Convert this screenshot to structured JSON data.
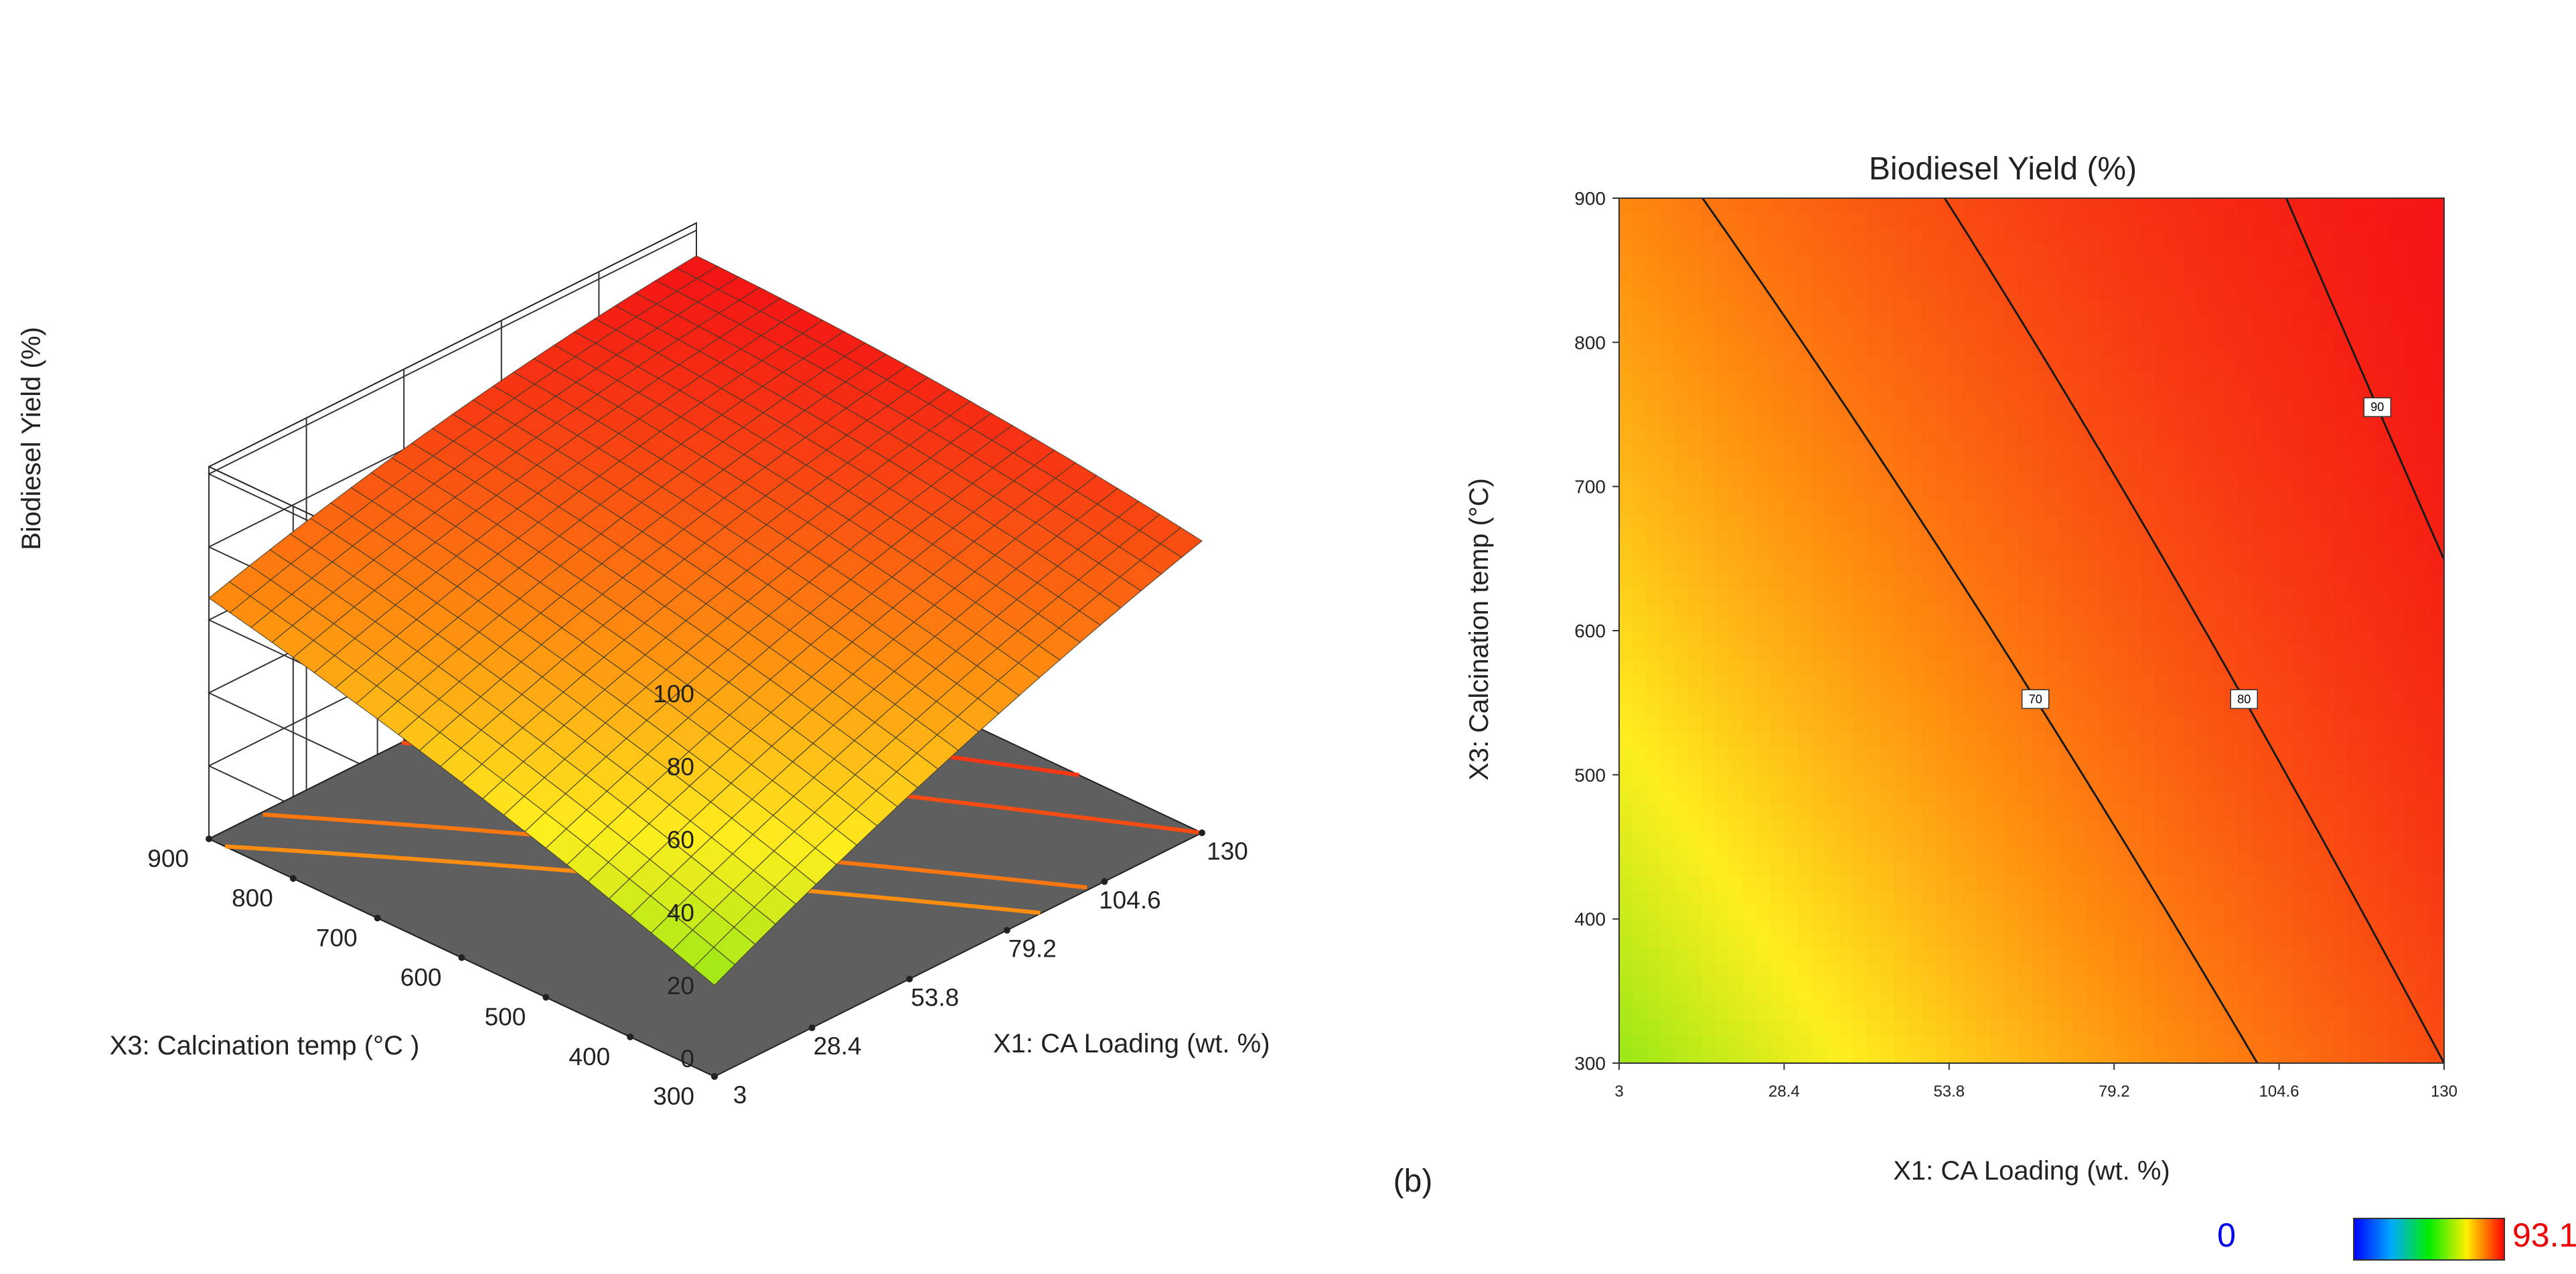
{
  "panel_label": "(b)",
  "chart_data": [
    {
      "type": "surface3d",
      "zlabel": "Biodiesel Yield (%)",
      "xlabel": "X1: CA Loading (wt. %)",
      "ylabel": "X3: Calcination temp (°C )",
      "x_ticks": [
        "3",
        "28.4",
        "53.8",
        "79.2",
        "104.6",
        "130"
      ],
      "y_ticks": [
        "300",
        "400",
        "500",
        "600",
        "700",
        "800",
        "900"
      ],
      "z_ticks": [
        "0",
        "20",
        "40",
        "60",
        "80",
        "100"
      ],
      "xlim": [
        3,
        130
      ],
      "ylim": [
        300,
        900
      ],
      "zlim": [
        0,
        100
      ],
      "corner_values": {
        "x3_y300": 25,
        "x3_y900": 66,
        "x130_y300": 80,
        "x130_y900": 93
      },
      "floor_contours": [
        65,
        70,
        80,
        85,
        90
      ]
    },
    {
      "type": "heatmap",
      "title": "Biodiesel Yield (%)",
      "xlabel": "X1: CA Loading (wt. %)",
      "ylabel": "X3: Calcination temp (°C)",
      "x_ticks": [
        "3",
        "28.4",
        "53.8",
        "79.2",
        "104.6",
        "130"
      ],
      "y_ticks": [
        "300",
        "400",
        "500",
        "600",
        "700",
        "800",
        "900"
      ],
      "xlim": [
        3,
        130
      ],
      "ylim": [
        300,
        900
      ],
      "contours": [
        {
          "level": 70,
          "label": "70"
        },
        {
          "level": 80,
          "label": "80"
        },
        {
          "level": 90,
          "label": "90"
        }
      ],
      "colorbar": {
        "min": "0",
        "max": "93.15",
        "min_color": "#0000ee",
        "max_color": "#ee0000"
      }
    }
  ]
}
